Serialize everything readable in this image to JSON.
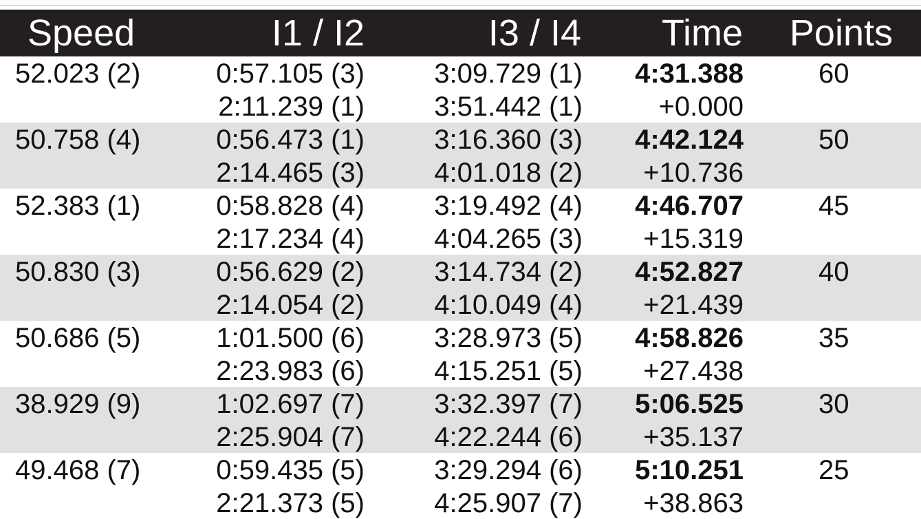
{
  "table": {
    "header": [
      "Speed",
      "I1 / I2",
      "I3 / I4",
      "Time",
      "Points"
    ],
    "rows": [
      {
        "speed": "52.023 (2)",
        "i1": "0:57.105 (3)",
        "i2": "2:11.239 (1)",
        "i3": "3:09.729 (1)",
        "i4": "3:51.442 (1)",
        "time": "4:31.388",
        "gap": "+0.000",
        "points": 60
      },
      {
        "speed": "50.758 (4)",
        "i1": "0:56.473 (1)",
        "i2": "2:14.465 (3)",
        "i3": "3:16.360 (3)",
        "i4": "4:01.018 (2)",
        "time": "4:42.124",
        "gap": "+10.736",
        "points": 50
      },
      {
        "speed": "52.383 (1)",
        "i1": "0:58.828 (4)",
        "i2": "2:17.234 (4)",
        "i3": "3:19.492 (4)",
        "i4": "4:04.265 (3)",
        "time": "4:46.707",
        "gap": "+15.319",
        "points": 45
      },
      {
        "speed": "50.830 (3)",
        "i1": "0:56.629 (2)",
        "i2": "2:14.054 (2)",
        "i3": "3:14.734 (2)",
        "i4": "4:10.049 (4)",
        "time": "4:52.827",
        "gap": "+21.439",
        "points": 40
      },
      {
        "speed": "50.686 (5)",
        "i1": "1:01.500 (6)",
        "i2": "2:23.983 (6)",
        "i3": "3:28.973 (5)",
        "i4": "4:15.251 (5)",
        "time": "4:58.826",
        "gap": "+27.438",
        "points": 35
      },
      {
        "speed": "38.929 (9)",
        "i1": "1:02.697 (7)",
        "i2": "2:25.904 (7)",
        "i3": "3:32.397 (7)",
        "i4": "4:22.244 (6)",
        "time": "5:06.525",
        "gap": "+35.137",
        "points": 30
      },
      {
        "speed": "49.468 (7)",
        "i1": "0:59.435 (5)",
        "i2": "2:21.373 (5)",
        "i3": "3:29.294 (6)",
        "i4": "4:25.907 (7)",
        "time": "5:10.251",
        "gap": "+38.863",
        "points": 25
      }
    ]
  }
}
